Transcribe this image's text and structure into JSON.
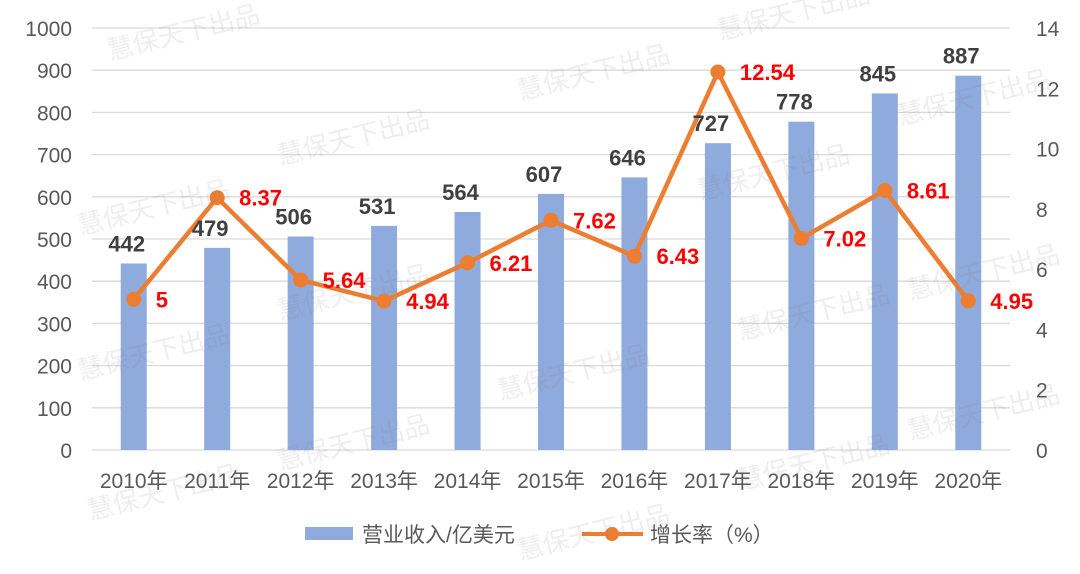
{
  "chart_data": {
    "type": "bar",
    "categories": [
      "2010年",
      "2011年",
      "2012年",
      "2013年",
      "2014年",
      "2015年",
      "2016年",
      "2017年",
      "2018年",
      "2019年",
      "2020年"
    ],
    "series": [
      {
        "name": "营业收入/亿美元",
        "type": "bar",
        "axis": "left",
        "values": [
          442,
          479,
          506,
          531,
          564,
          607,
          646,
          727,
          778,
          845,
          887
        ]
      },
      {
        "name": "增长率（%）",
        "type": "line",
        "axis": "right",
        "values": [
          5,
          8.37,
          5.64,
          4.94,
          6.21,
          7.62,
          6.43,
          12.54,
          7.02,
          8.61,
          4.95
        ]
      }
    ],
    "y_left": {
      "min": 0,
      "max": 1000,
      "step": 100
    },
    "y_right": {
      "min": 0,
      "max": 14,
      "step": 2
    },
    "grid": true,
    "legend": "bottom",
    "colors": {
      "bar": "#8faadc",
      "line": "#ed7d31",
      "bar_label": "#404040",
      "line_label": "#ff0000",
      "grid": "#d9d9d9",
      "axis_text": "#595959"
    }
  },
  "watermark": "慧保天下出品"
}
